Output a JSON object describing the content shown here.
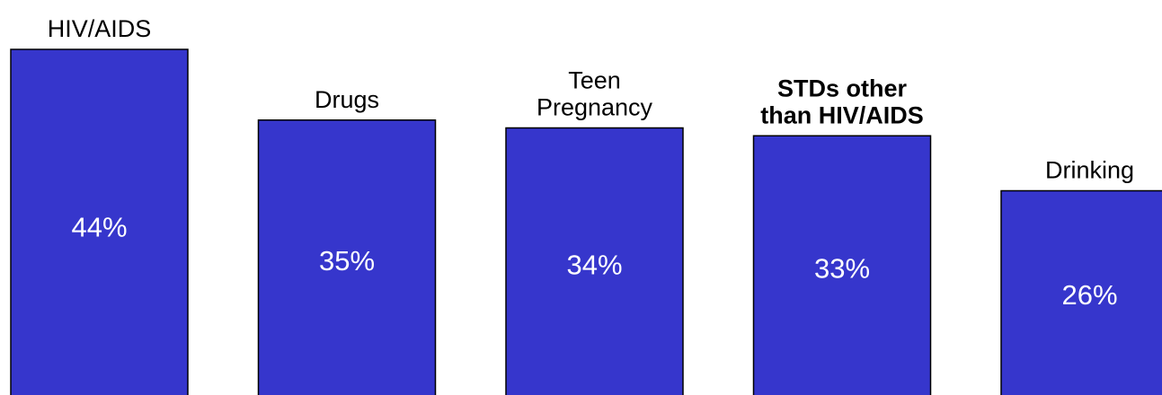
{
  "chart_data": {
    "type": "bar",
    "categories": [
      [
        "HIV/AIDS"
      ],
      [
        "Drugs"
      ],
      [
        "Teen",
        "Pregnancy"
      ],
      [
        "STDs other",
        "than HIV/AIDS"
      ],
      [
        "Drinking"
      ]
    ],
    "values": [
      44,
      35,
      34,
      33,
      26
    ],
    "value_labels": [
      "44%",
      "35%",
      "34%",
      "33%",
      "26%"
    ],
    "bold_categories": [
      false,
      false,
      false,
      true,
      false
    ],
    "title": "",
    "xlabel": "",
    "ylabel": "",
    "ylim": [
      0,
      44
    ],
    "grid": false,
    "legend": "none",
    "colors": {
      "bar_fill": "#3636CC",
      "bar_stroke": "#000000",
      "value_text": "#FFFFFF",
      "category_text": "#000000"
    }
  }
}
